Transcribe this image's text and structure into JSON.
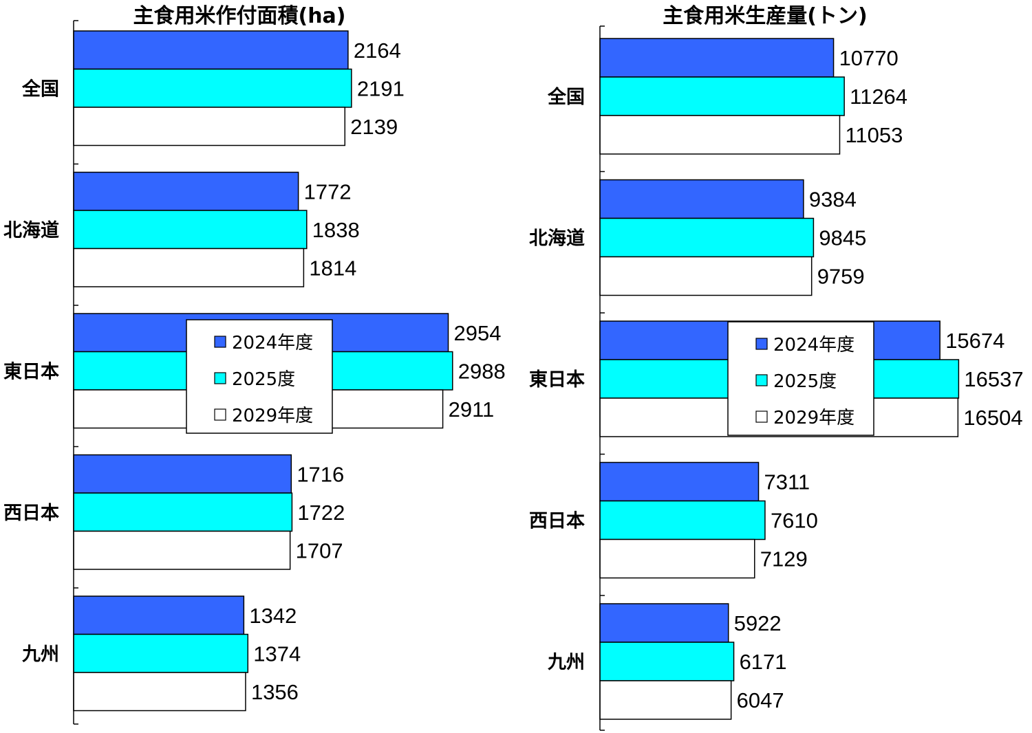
{
  "chart_data": [
    {
      "type": "bar",
      "orientation": "horizontal",
      "title": "主食用米作付面積(ha)",
      "categories": [
        "全国",
        "北海道",
        "東日本",
        "西日本",
        "九州"
      ],
      "series": [
        {
          "name": "2024年度",
          "values": [
            2164,
            1772,
            2954,
            1716,
            1342
          ],
          "color": "#3366FF"
        },
        {
          "name": "2025度",
          "values": [
            2191,
            1838,
            2988,
            1722,
            1374
          ],
          "color": "#00FFFF"
        },
        {
          "name": "2029年度",
          "values": [
            2139,
            1814,
            2911,
            1707,
            1356
          ],
          "color": "#FFFFFF"
        }
      ],
      "xlim": [
        0,
        3000
      ],
      "legend_placement": "center",
      "grid": false
    },
    {
      "type": "bar",
      "orientation": "horizontal",
      "title": "主食用米生産量(トン)",
      "categories": [
        "全国",
        "北海道",
        "東日本",
        "西日本",
        "九州"
      ],
      "series": [
        {
          "name": "2024年度",
          "values": [
            10770,
            9384,
            15674,
            7311,
            5922
          ],
          "color": "#3366FF"
        },
        {
          "name": "2025度",
          "values": [
            11264,
            9845,
            16537,
            7610,
            6171
          ],
          "color": "#00FFFF"
        },
        {
          "name": "2029年度",
          "values": [
            11053,
            9759,
            16504,
            7129,
            6047
          ],
          "color": "#FFFFFF"
        }
      ],
      "xlim": [
        0,
        17000
      ],
      "legend_placement": "center",
      "grid": false
    }
  ]
}
